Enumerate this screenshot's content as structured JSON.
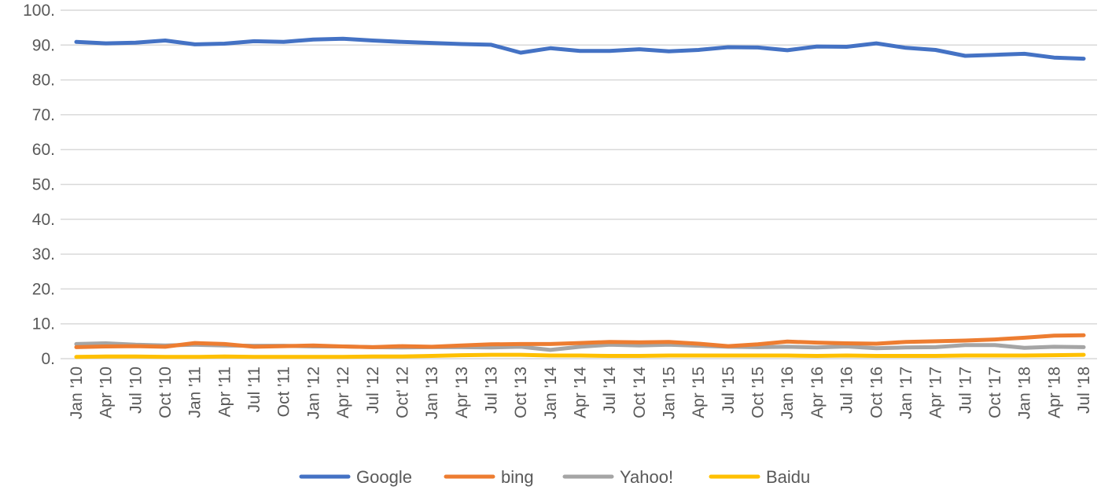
{
  "chart_data": {
    "type": "line",
    "title": "",
    "xlabel": "",
    "ylabel": "",
    "ylim": [
      0,
      100
    ],
    "y_ticks": [
      "0.",
      "10.",
      "20.",
      "30.",
      "40.",
      "50.",
      "60.",
      "70.",
      "80.",
      "90.",
      "100."
    ],
    "grid": true,
    "legend_position": "bottom",
    "categories": [
      "Jan '10",
      "Apr '10",
      "Jul '10",
      "Oct '10",
      "Jan '11",
      "Apr '11",
      "Jul '11",
      "Oct '11",
      "Jan '12",
      "Apr '12",
      "Jul '12",
      "Oct' 12",
      "Jan '13",
      "Apr '13",
      "Jul '13",
      "Oct '13",
      "Jan '14",
      "Apr '14",
      "Jul '14",
      "Oct '14",
      "Jan '15",
      "Apr '15",
      "Jul '15",
      "Oct '15",
      "Jan '16",
      "Apr '16",
      "Jul '16",
      "Oct '16",
      "Jan '17",
      "Apr '17",
      "Jul '17",
      "Oct '17",
      "Jan '18",
      "Apr '18",
      "Jul '18"
    ],
    "series": [
      {
        "name": "Google",
        "color": "#4472c4",
        "values": [
          90.9,
          90.5,
          90.7,
          91.3,
          90.2,
          90.4,
          91.1,
          90.9,
          91.6,
          91.8,
          91.3,
          90.9,
          90.6,
          90.3,
          90.1,
          87.8,
          89.1,
          88.3,
          88.3,
          88.8,
          88.2,
          88.6,
          89.4,
          89.3,
          88.5,
          89.6,
          89.5,
          90.5,
          89.2,
          88.6,
          86.9,
          87.2,
          87.5,
          86.4,
          86.1
        ]
      },
      {
        "name": "bing",
        "color": "#ed7d31",
        "values": [
          3.3,
          3.5,
          3.6,
          3.4,
          4.5,
          4.2,
          3.4,
          3.6,
          3.8,
          3.5,
          3.3,
          3.6,
          3.4,
          3.8,
          4.1,
          4.2,
          4.2,
          4.5,
          4.8,
          4.7,
          4.8,
          4.3,
          3.6,
          4.1,
          4.9,
          4.6,
          4.4,
          4.3,
          4.8,
          5.0,
          5.2,
          5.5,
          6.0,
          6.6,
          6.7
        ]
      },
      {
        "name": "Yahoo!",
        "color": "#a5a5a5",
        "values": [
          4.2,
          4.4,
          4.0,
          3.8,
          4.0,
          3.8,
          3.7,
          3.7,
          3.5,
          3.5,
          3.3,
          3.2,
          3.3,
          3.3,
          3.2,
          3.4,
          2.5,
          3.4,
          4.0,
          3.8,
          4.0,
          3.7,
          3.4,
          3.3,
          3.4,
          3.2,
          3.5,
          3.0,
          3.2,
          3.3,
          3.9,
          3.9,
          3.1,
          3.4,
          3.3
        ]
      },
      {
        "name": "Baidu",
        "color": "#ffc000",
        "values": [
          0.5,
          0.6,
          0.6,
          0.5,
          0.5,
          0.6,
          0.5,
          0.5,
          0.5,
          0.5,
          0.6,
          0.6,
          0.8,
          1.0,
          1.1,
          1.1,
          0.9,
          0.9,
          0.8,
          0.8,
          0.9,
          0.9,
          0.9,
          0.9,
          0.9,
          0.8,
          0.9,
          0.8,
          0.8,
          0.8,
          0.9,
          0.9,
          0.9,
          1.0,
          1.1
        ]
      }
    ]
  }
}
